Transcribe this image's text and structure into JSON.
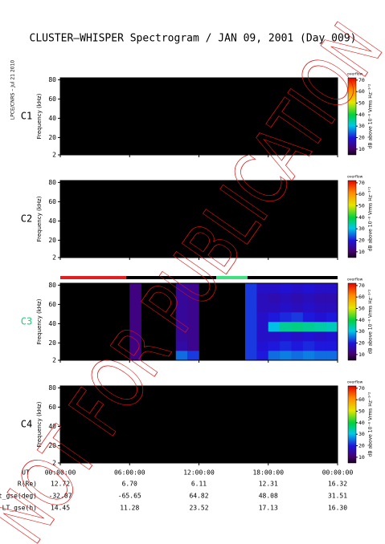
{
  "title": "CLUSTER–WHISPER Spectrogram / JAN 09, 2001 (Day 009)",
  "credit": "LPCE/CNRS – Jul 21 2010",
  "watermark": "NOT FOR PUBLICATION",
  "orbit": {
    "time_label": "UT",
    "rows": [
      {
        "name": "R(Re)",
        "values": [
          "12.72",
          "6.70",
          "6.11",
          "12.31",
          "16.32"
        ]
      },
      {
        "name": "Lat_gse(deg)",
        "values": [
          "-32.07",
          "-65.65",
          "64.82",
          "48.08",
          "31.51"
        ]
      },
      {
        "name": "LT_gse(h)",
        "values": [
          "14.45",
          "11.28",
          "23.52",
          "17.13",
          "16.30"
        ]
      }
    ]
  },
  "chart_data": [
    {
      "type": "heatmap",
      "label": "C1",
      "label_color": "#000000",
      "ylabel": "Frequency (kHz)",
      "xlim": [
        0,
        24
      ],
      "xticks": [
        {
          "value": 0,
          "label": "00:00:00"
        },
        {
          "value": 6,
          "label": "06:00:00"
        },
        {
          "value": 12,
          "label": "12:00:00"
        },
        {
          "value": 18,
          "label": "18:00:00"
        },
        {
          "value": 24,
          "label": "00:00:00"
        }
      ],
      "ylim": [
        2,
        82
      ],
      "yticks": [
        2,
        20,
        40,
        60,
        80
      ],
      "colorbar": {
        "label": "dB above 10⁻⁸ Vrms Hz⁻¹ᐟ²",
        "overflow_label": "overflow",
        "zlim": [
          5,
          72
        ],
        "zticks": [
          10,
          20,
          30,
          40,
          50,
          60,
          70
        ]
      }
    },
    {
      "type": "heatmap",
      "label": "C2",
      "label_color": "#000000",
      "ylabel": "Frequency (kHz)",
      "xlim": [
        0,
        24
      ],
      "xticks": [
        {
          "value": 0,
          "label": "00:00:00"
        },
        {
          "value": 6,
          "label": "06:00:00"
        },
        {
          "value": 12,
          "label": "12:00:00"
        },
        {
          "value": 18,
          "label": "18:00:00"
        },
        {
          "value": 24,
          "label": "00:00:00"
        }
      ],
      "ylim": [
        2,
        82
      ],
      "yticks": [
        2,
        20,
        40,
        60,
        80
      ],
      "colorbar": {
        "label": "dB above 10⁻⁸ Vrms Hz⁻¹ᐟ²",
        "overflow_label": "overflow",
        "zlim": [
          5,
          72
        ],
        "zticks": [
          10,
          20,
          30,
          40,
          50,
          60,
          70
        ]
      }
    },
    {
      "type": "heatmap",
      "label": "C3",
      "label_color": "#22cc77",
      "ylabel": "Frequency (kHz)",
      "xlim": [
        0,
        24
      ],
      "xticks": [
        {
          "value": 0,
          "label": "00:00:00"
        },
        {
          "value": 6,
          "label": "06:00:00"
        },
        {
          "value": 12,
          "label": "12:00:00"
        },
        {
          "value": 18,
          "label": "18:00:00"
        },
        {
          "value": 24,
          "label": "00:00:00"
        }
      ],
      "ylim": [
        2,
        82
      ],
      "yticks": [
        2,
        20,
        40,
        60,
        80
      ],
      "status_bar": [
        {
          "x": [
            0,
            5.7
          ],
          "color": "#e02020"
        },
        {
          "x": [
            5.7,
            13.5
          ],
          "color": "#000000"
        },
        {
          "x": [
            13.5,
            16.2
          ],
          "color": "#40e080"
        },
        {
          "x": [
            16.2,
            24
          ],
          "color": "#000000"
        }
      ],
      "xbins": [
        0,
        1,
        2,
        3,
        4,
        5,
        6,
        7,
        8,
        9,
        10,
        11,
        12,
        13,
        14,
        15,
        16,
        17,
        18,
        19,
        20,
        21,
        22,
        23,
        24
      ],
      "ybins": [
        2,
        12,
        22,
        32,
        42,
        52,
        62,
        72,
        82
      ],
      "z": [
        [
          null,
          null,
          null,
          null,
          null,
          null,
          12,
          null,
          null,
          null,
          25,
          22,
          null,
          null,
          null,
          null,
          22,
          20,
          25,
          26,
          25,
          26,
          25,
          25
        ],
        [
          null,
          null,
          null,
          null,
          null,
          null,
          12,
          null,
          null,
          null,
          15,
          13,
          null,
          null,
          null,
          null,
          22,
          19,
          20,
          21,
          20,
          21,
          20,
          20
        ],
        [
          null,
          null,
          null,
          null,
          null,
          null,
          12,
          null,
          null,
          null,
          14,
          13,
          null,
          null,
          null,
          null,
          22,
          18,
          18,
          19,
          18,
          19,
          18,
          19
        ],
        [
          null,
          null,
          null,
          null,
          null,
          null,
          12,
          null,
          null,
          null,
          14,
          13,
          null,
          null,
          null,
          null,
          22,
          18,
          30,
          35,
          36,
          35,
          34,
          33
        ],
        [
          null,
          null,
          null,
          null,
          null,
          null,
          12,
          null,
          null,
          null,
          14,
          13,
          null,
          null,
          null,
          null,
          22,
          18,
          20,
          21,
          22,
          20,
          19,
          20
        ],
        [
          null,
          null,
          null,
          null,
          null,
          null,
          12,
          null,
          null,
          null,
          14,
          13,
          null,
          null,
          null,
          null,
          22,
          17,
          17,
          18,
          17,
          18,
          17,
          17
        ],
        [
          null,
          null,
          null,
          null,
          null,
          null,
          12,
          null,
          null,
          null,
          14,
          13,
          null,
          null,
          null,
          null,
          22,
          17,
          16,
          17,
          16,
          17,
          16,
          16
        ],
        [
          null,
          null,
          null,
          null,
          null,
          null,
          12,
          null,
          null,
          null,
          14,
          13,
          null,
          null,
          null,
          null,
          22,
          18,
          18,
          19,
          18,
          19,
          18,
          18
        ]
      ],
      "colorbar": {
        "label": "dB above 10⁻⁸ Vrms Hz⁻¹ᐟ²",
        "overflow_label": "overflow",
        "zlim": [
          5,
          72
        ],
        "zticks": [
          10,
          20,
          30,
          40,
          50,
          60,
          70
        ]
      }
    },
    {
      "type": "heatmap",
      "label": "C4",
      "label_color": "#000000",
      "ylabel": "Frequency (kHz)",
      "xlim": [
        0,
        24
      ],
      "xticks": [
        {
          "value": 0,
          "label": "00:00:00"
        },
        {
          "value": 6,
          "label": "06:00:00"
        },
        {
          "value": 12,
          "label": "12:00:00"
        },
        {
          "value": 18,
          "label": "18:00:00"
        },
        {
          "value": 24,
          "label": "00:00:00"
        }
      ],
      "ylim": [
        2,
        82
      ],
      "yticks": [
        2,
        20,
        40,
        60,
        80
      ],
      "colorbar": {
        "label": "dB above 10⁻⁸ Vrms Hz⁻¹ᐟ²",
        "overflow_label": "overflow",
        "zlim": [
          5,
          72
        ],
        "zticks": [
          10,
          20,
          30,
          40,
          50,
          60,
          70
        ]
      }
    }
  ]
}
